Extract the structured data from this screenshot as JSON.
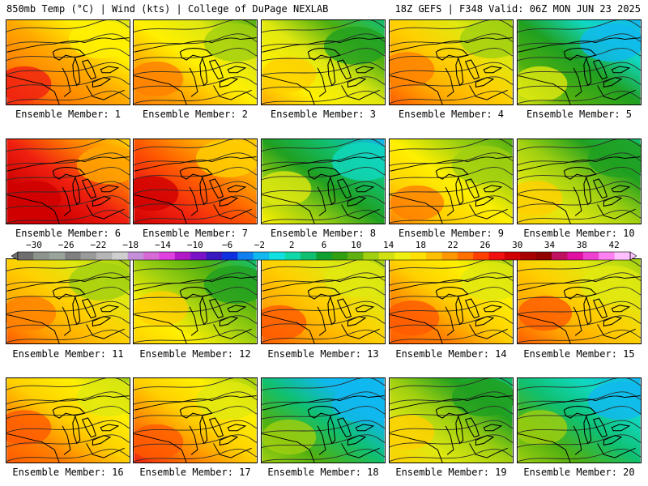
{
  "header": {
    "left_title": "850mb Temp (°C) | Wind (kts) | College of DuPage NEXLAB",
    "right_title": "18Z GEFS | F348 Valid: 06Z MON JUN 23 2025"
  },
  "colorbar": {
    "labels": [
      "−30",
      "−26",
      "−22",
      "−18",
      "−14",
      "−10",
      "−6",
      "−2",
      "2",
      "6",
      "10",
      "14",
      "18",
      "22",
      "26",
      "30",
      "34",
      "38",
      "42"
    ],
    "colors": [
      "#6f6f6f",
      "#8c948c",
      "#9aa49a",
      "#7f7f7f",
      "#9a9a9a",
      "#b5b5b5",
      "#cfcfcf",
      "#c48fd8",
      "#d86ad8",
      "#e040e0",
      "#b018c8",
      "#7a10c8",
      "#3a18c0",
      "#1030e0",
      "#1080f0",
      "#10b8f0",
      "#10e0e0",
      "#10d8a8",
      "#10c070",
      "#10a030",
      "#30a010",
      "#60b010",
      "#a0d010",
      "#d0e010",
      "#f0f010",
      "#ffe000",
      "#ffc000",
      "#ff9800",
      "#ff7000",
      "#ff4000",
      "#f01010",
      "#d00000",
      "#a80000",
      "#900000",
      "#c01060",
      "#e010a0",
      "#f040d0",
      "#ff80f0",
      "#ffc0ff"
    ],
    "range": [
      -32,
      44
    ]
  },
  "members": [
    {
      "label": "Ensemble Member: 1",
      "warmth": 0.68
    },
    {
      "label": "Ensemble Member: 2",
      "warmth": 0.58
    },
    {
      "label": "Ensemble Member: 3",
      "warmth": 0.45
    },
    {
      "label": "Ensemble Member: 4",
      "warmth": 0.6
    },
    {
      "label": "Ensemble Member: 5",
      "warmth": 0.25
    },
    {
      "label": "Ensemble Member: 6",
      "warmth": 0.88
    },
    {
      "label": "Ensemble Member: 7",
      "warmth": 0.82
    },
    {
      "label": "Ensemble Member: 8",
      "warmth": 0.3
    },
    {
      "label": "Ensemble Member: 9",
      "warmth": 0.55
    },
    {
      "label": "Ensemble Member: 10",
      "warmth": 0.4
    },
    {
      "label": "Ensemble Member: 11",
      "warmth": 0.6
    },
    {
      "label": "Ensemble Member: 12",
      "warmth": 0.42
    },
    {
      "label": "Ensemble Member: 13",
      "warmth": 0.62
    },
    {
      "label": "Ensemble Member: 14",
      "warmth": 0.65
    },
    {
      "label": "Ensemble Member: 15",
      "warmth": 0.62
    },
    {
      "label": "Ensemble Member: 16",
      "warmth": 0.64
    },
    {
      "label": "Ensemble Member: 17",
      "warmth": 0.66
    },
    {
      "label": "Ensemble Member: 18",
      "warmth": 0.2
    },
    {
      "label": "Ensemble Member: 19",
      "warmth": 0.4
    },
    {
      "label": "Ensemble Member: 20",
      "warmth": 0.22
    }
  ]
}
